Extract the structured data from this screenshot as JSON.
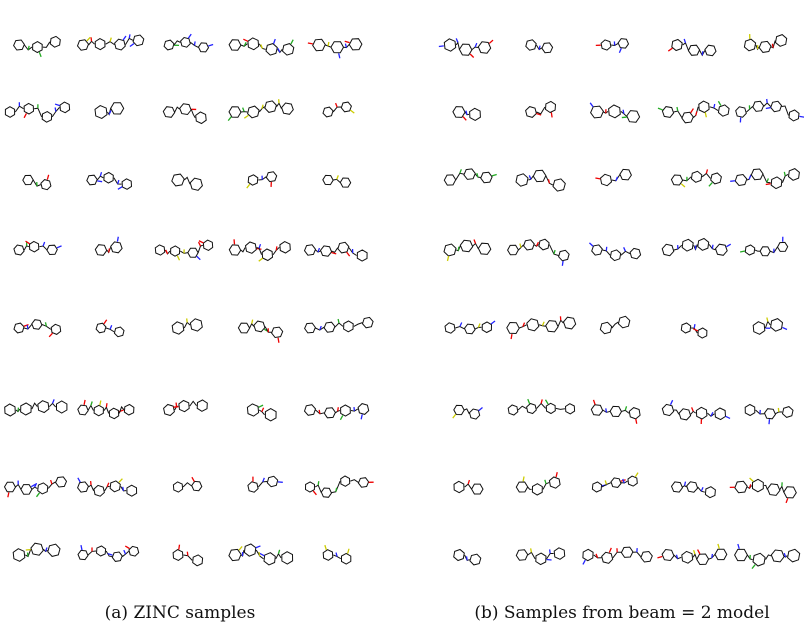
{
  "figure": {
    "panels": [
      {
        "caption": "(a) ZINC samples"
      },
      {
        "caption": "(b) Samples from beam = 2 model"
      }
    ]
  }
}
